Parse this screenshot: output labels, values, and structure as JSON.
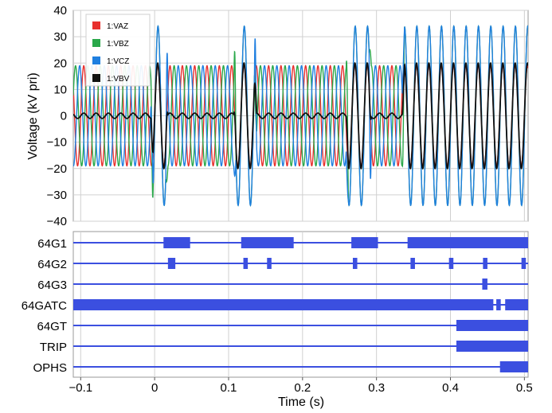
{
  "chart_data": [
    {
      "type": "line",
      "xlabel": "Time (s)",
      "ylabel": "Voltage (kV pri)",
      "xlim": [
        -0.11,
        0.505
      ],
      "ylim": [
        -40,
        40
      ],
      "grid": true,
      "legend_position": "top-left",
      "y_ticks": [
        "40",
        "30",
        "20",
        "10",
        "0",
        "−10",
        "−20",
        "−30",
        "−40"
      ],
      "series": [
        {
          "name": "1:VAZ",
          "color": "#e8302e",
          "amplitude": 19,
          "frequency_hz": 60,
          "phase_deg": 0
        },
        {
          "name": "1:VBZ",
          "color": "#2aa84a",
          "amplitude": 19,
          "frequency_hz": 60,
          "phase_deg": -120,
          "burst_peak": 34
        },
        {
          "name": "1:VCZ",
          "color": "#1f7fe0",
          "amplitude": 19,
          "frequency_hz": 60,
          "phase_deg": 120,
          "burst_peak": 34
        },
        {
          "name": "1:VBV",
          "color": "#111111",
          "amplitude": 1,
          "frequency_hz": 60,
          "burst_peak": 20
        }
      ],
      "burst_intervals_s": [
        [
          -0.002,
          0.015
        ],
        [
          0.11,
          0.135
        ],
        [
          0.262,
          0.29
        ],
        [
          0.338,
          0.505
        ]
      ]
    },
    {
      "type": "digital",
      "xlabel": "Time (s)",
      "x_ticks": [
        "−0.1",
        "0",
        "0.1",
        "0.2",
        "0.3",
        "0.4",
        "0.5"
      ],
      "x_tick_values": [
        -0.1,
        0,
        0.1,
        0.2,
        0.3,
        0.4,
        0.5
      ],
      "signal_color": "#3b4fe0",
      "signals": [
        {
          "name": "64G1",
          "asserted": [
            [
              0.012,
              0.048
            ],
            [
              0.117,
              0.188
            ],
            [
              0.266,
              0.302
            ],
            [
              0.342,
              0.505
            ]
          ]
        },
        {
          "name": "64G2",
          "asserted": [
            [
              0.018,
              0.028
            ],
            [
              0.12,
              0.126
            ],
            [
              0.152,
              0.158
            ],
            [
              0.268,
              0.274
            ],
            [
              0.346,
              0.352
            ],
            [
              0.398,
              0.404
            ],
            [
              0.444,
              0.45
            ],
            [
              0.496,
              0.502
            ]
          ]
        },
        {
          "name": "64G3",
          "asserted": [
            [
              0.443,
              0.45
            ]
          ]
        },
        {
          "name": "64GATC",
          "asserted": [
            [
              -0.11,
              0.458
            ],
            [
              0.462,
              0.468
            ],
            [
              0.474,
              0.505
            ]
          ]
        },
        {
          "name": "64GT",
          "asserted": [
            [
              0.408,
              0.505
            ]
          ]
        },
        {
          "name": "TRIP",
          "asserted": [
            [
              0.408,
              0.505
            ]
          ]
        },
        {
          "name": "OPHS",
          "asserted": [
            [
              0.467,
              0.505
            ]
          ]
        }
      ]
    }
  ]
}
